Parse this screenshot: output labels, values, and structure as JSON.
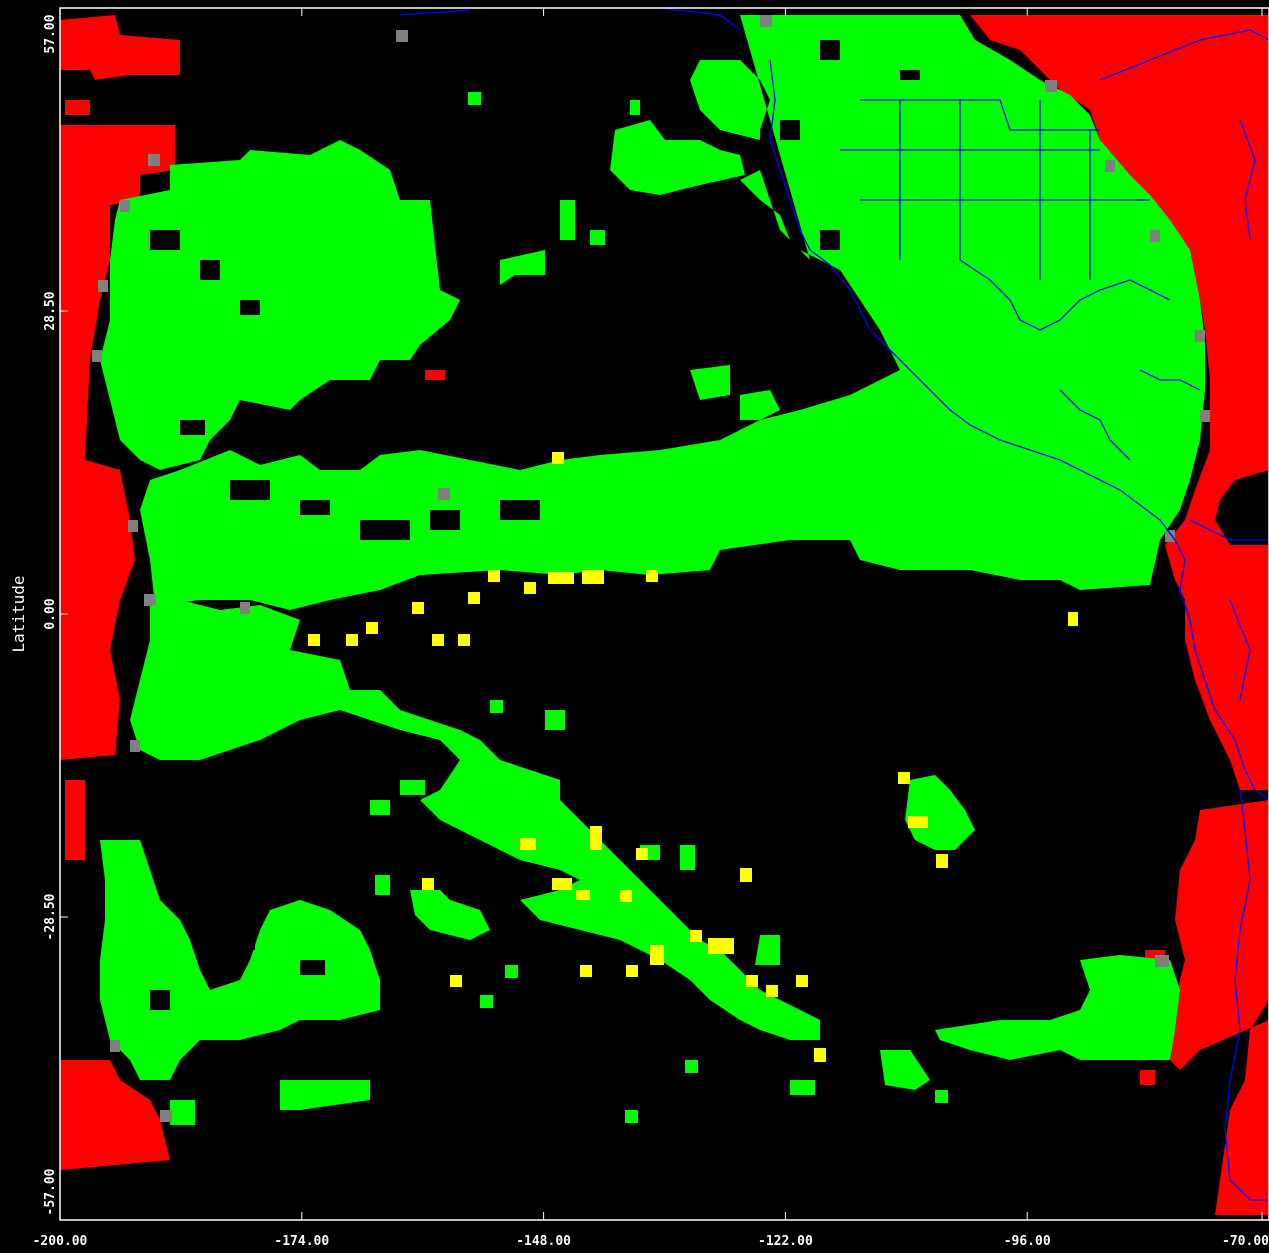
{
  "map": {
    "y_axis_label": "Latitude",
    "x_ticks": [
      "-200.00",
      "-174.00",
      "-148.00",
      "-122.00",
      "-96.00",
      "-70.00"
    ],
    "y_ticks": [
      "57.00",
      "28.50",
      "0.00",
      "-28.50",
      "-57.00"
    ],
    "colors": {
      "background": "#000000",
      "ocean_match": "#00ff00",
      "land_mask": "#ff0000",
      "flagged": "#ffff00",
      "missing": "#808080",
      "dark_cell": "#006400",
      "coastline": "#0000ff",
      "frame": "#ffffff"
    },
    "legend_note": ""
  },
  "chart_data": {
    "type": "heatmap",
    "xlim": [
      -200.0,
      -70.0
    ],
    "ylim": [
      -57.0,
      57.0
    ],
    "ylabel": "Latitude",
    "xlabel": "",
    "grid": false
  }
}
